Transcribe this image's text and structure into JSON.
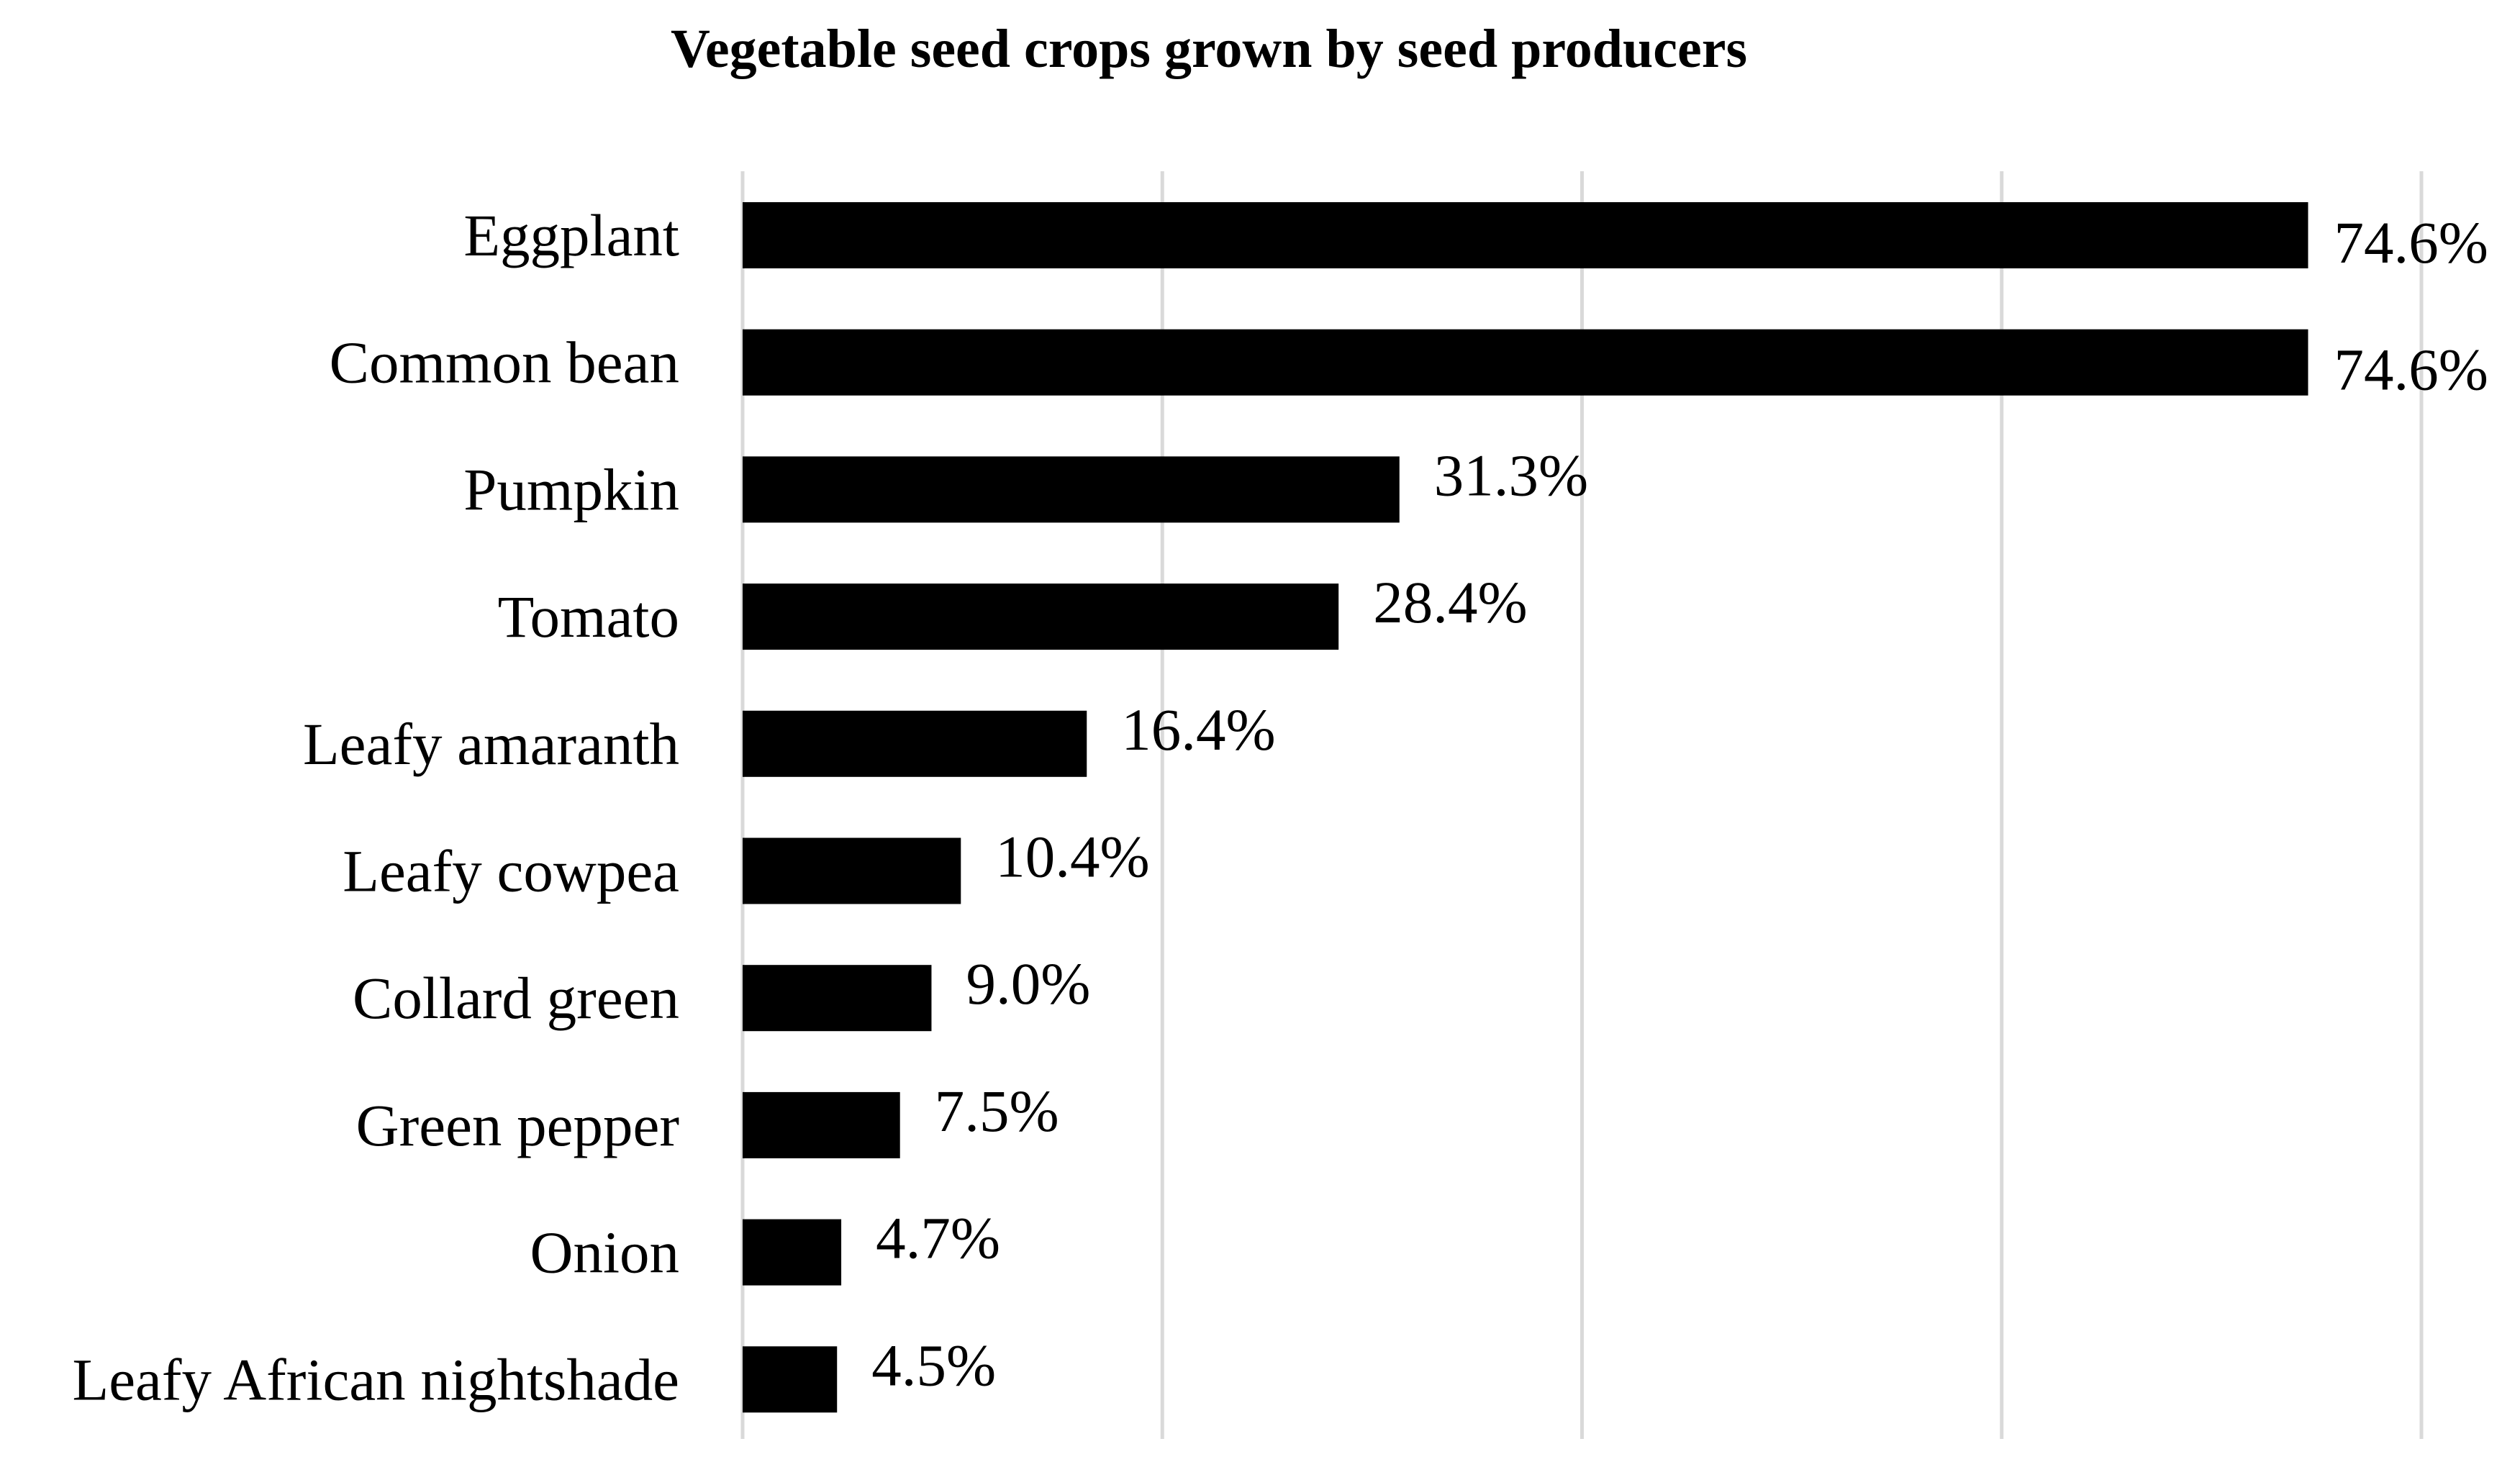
{
  "chart_data": {
    "type": "bar",
    "orientation": "horizontal",
    "title": "Vegetable seed crops grown by seed producers",
    "xlabel": "",
    "ylabel": "",
    "categories": [
      "Eggplant",
      "Common bean",
      "Pumpkin",
      "Tomato",
      "Leafy amaranth",
      "Leafy cowpea",
      "Collard green",
      "Green pepper",
      "Onion",
      "Leafy African nightshade"
    ],
    "values": [
      74.6,
      74.6,
      31.3,
      28.4,
      16.4,
      10.4,
      9.0,
      7.5,
      4.7,
      4.5
    ],
    "value_labels": [
      "74.6%",
      "74.6%",
      "31.3%",
      "28.4%",
      "16.4%",
      "10.4%",
      "9.0%",
      "7.5%",
      "4.7%",
      "4.5%"
    ],
    "xlim": [
      0,
      80
    ],
    "grid": true,
    "legend": "none",
    "colors": {
      "bar": "#000000",
      "grid": "#d9d9d9",
      "text": "#000000"
    }
  }
}
